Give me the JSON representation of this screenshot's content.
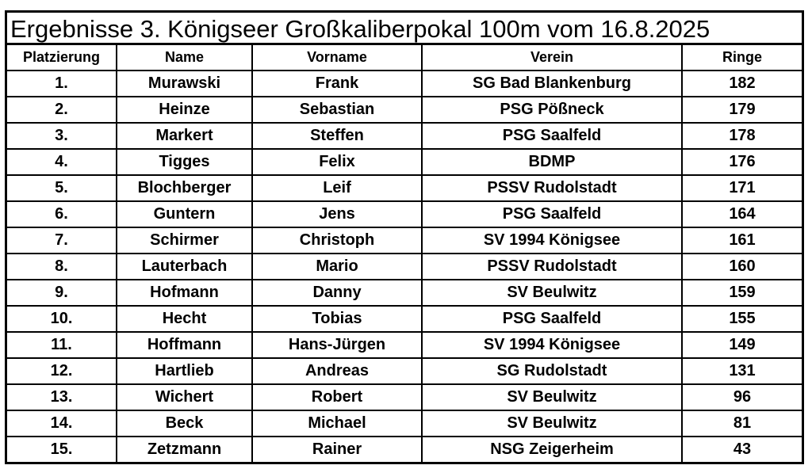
{
  "title": "Ergebnisse 3. Königseer Großkaliberpokal 100m vom 16.8.2025",
  "columns": {
    "platz": "Platzierung",
    "name": "Name",
    "vorname": "Vorname",
    "verein": "Verein",
    "ringe": "Ringe"
  },
  "rows": [
    {
      "platz": "1.",
      "name": "Murawski",
      "vorname": "Frank",
      "verein": "SG Bad Blankenburg",
      "ringe": "182"
    },
    {
      "platz": "2.",
      "name": "Heinze",
      "vorname": "Sebastian",
      "verein": "PSG Pößneck",
      "ringe": "179"
    },
    {
      "platz": "3.",
      "name": "Markert",
      "vorname": "Steffen",
      "verein": "PSG Saalfeld",
      "ringe": "178"
    },
    {
      "platz": "4.",
      "name": "Tigges",
      "vorname": "Felix",
      "verein": "BDMP",
      "ringe": "176"
    },
    {
      "platz": "5.",
      "name": "Blochberger",
      "vorname": "Leif",
      "verein": "PSSV Rudolstadt",
      "ringe": "171"
    },
    {
      "platz": "6.",
      "name": "Guntern",
      "vorname": "Jens",
      "verein": "PSG Saalfeld",
      "ringe": "164"
    },
    {
      "platz": "7.",
      "name": "Schirmer",
      "vorname": "Christoph",
      "verein": "SV 1994 Königsee",
      "ringe": "161"
    },
    {
      "platz": "8.",
      "name": "Lauterbach",
      "vorname": "Mario",
      "verein": "PSSV Rudolstadt",
      "ringe": "160"
    },
    {
      "platz": "9.",
      "name": "Hofmann",
      "vorname": "Danny",
      "verein": "SV Beulwitz",
      "ringe": "159"
    },
    {
      "platz": "10.",
      "name": "Hecht",
      "vorname": "Tobias",
      "verein": "PSG Saalfeld",
      "ringe": "155"
    },
    {
      "platz": "11.",
      "name": "Hoffmann",
      "vorname": "Hans-Jürgen",
      "verein": "SV 1994 Königsee",
      "ringe": "149"
    },
    {
      "platz": "12.",
      "name": "Hartlieb",
      "vorname": "Andreas",
      "verein": "SG Rudolstadt",
      "ringe": "131"
    },
    {
      "platz": "13.",
      "name": "Wichert",
      "vorname": "Robert",
      "verein": "SV Beulwitz",
      "ringe": "96"
    },
    {
      "platz": "14.",
      "name": "Beck",
      "vorname": "Michael",
      "verein": "SV Beulwitz",
      "ringe": "81"
    },
    {
      "platz": "15.",
      "name": "Zetzmann",
      "vorname": "Rainer",
      "verein": "NSG Zeigerheim",
      "ringe": "43"
    }
  ]
}
